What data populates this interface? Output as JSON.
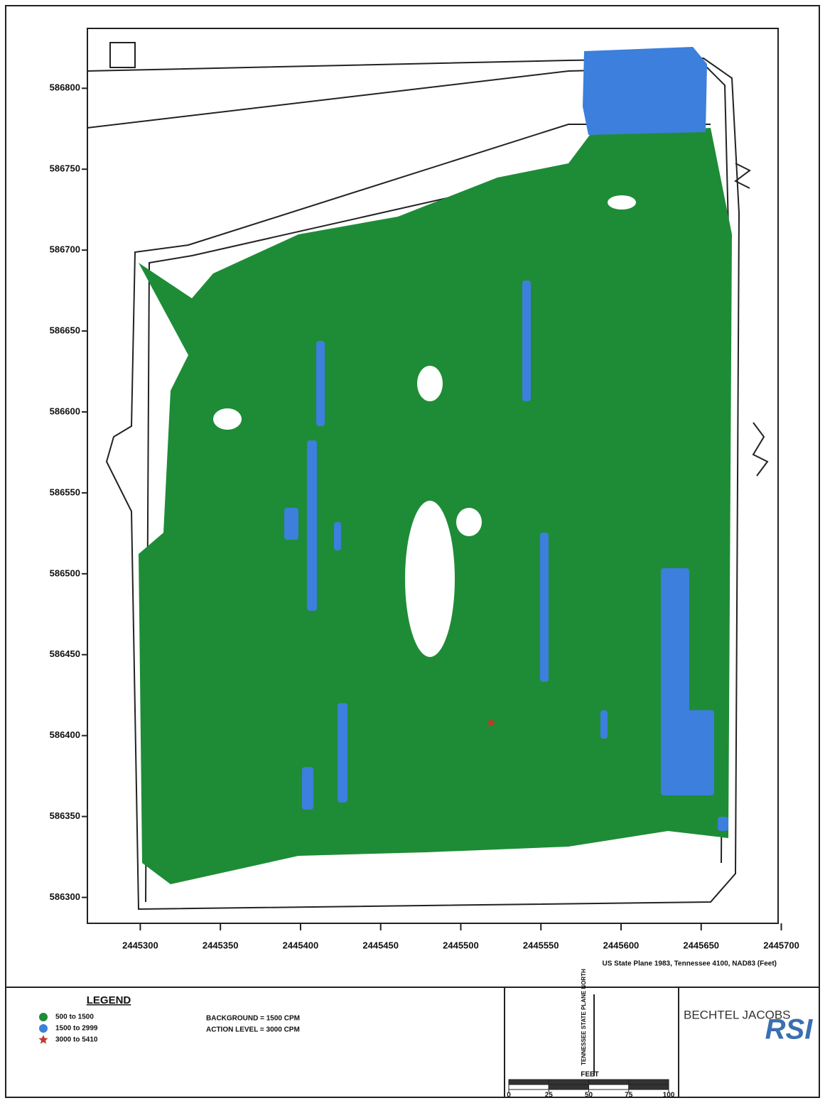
{
  "map": {
    "xaxis": {
      "lim": [
        2445267,
        2445698
      ],
      "ticks": [
        2445300,
        2445350,
        2445400,
        2445450,
        2445500,
        2445550,
        2445600,
        2445650,
        2445700
      ]
    },
    "yaxis": {
      "lim": [
        586284,
        586837
      ],
      "ticks": [
        586300,
        586350,
        586400,
        586450,
        586500,
        586550,
        586600,
        586650,
        586700,
        586750,
        586800
      ]
    },
    "axis_label": "US State Plane 1983, Tennessee 4100, NAD83 (Feet)",
    "colors": {
      "low": "#1e8c36",
      "mid": "#3c7fdc",
      "high": "#c0392b"
    },
    "point": {
      "x": 2445519,
      "y": 586408
    }
  },
  "legend": {
    "title": "LEGEND",
    "items": [
      "500 to 1500",
      "1500 to 2999",
      "3000 to 5410"
    ],
    "notes": [
      "BACKGROUND = 1500 CPM",
      "ACTION LEVEL = 3000 CPM"
    ]
  },
  "north_arrow": {
    "label": "TENNESSEE STATE PLANE NORTH"
  },
  "scale_bar": {
    "unit": "FEET",
    "ticks": [
      0,
      25,
      50,
      75,
      100
    ]
  },
  "logos": {
    "company": "BECHTEL JACOBS",
    "partner": "RSI"
  }
}
